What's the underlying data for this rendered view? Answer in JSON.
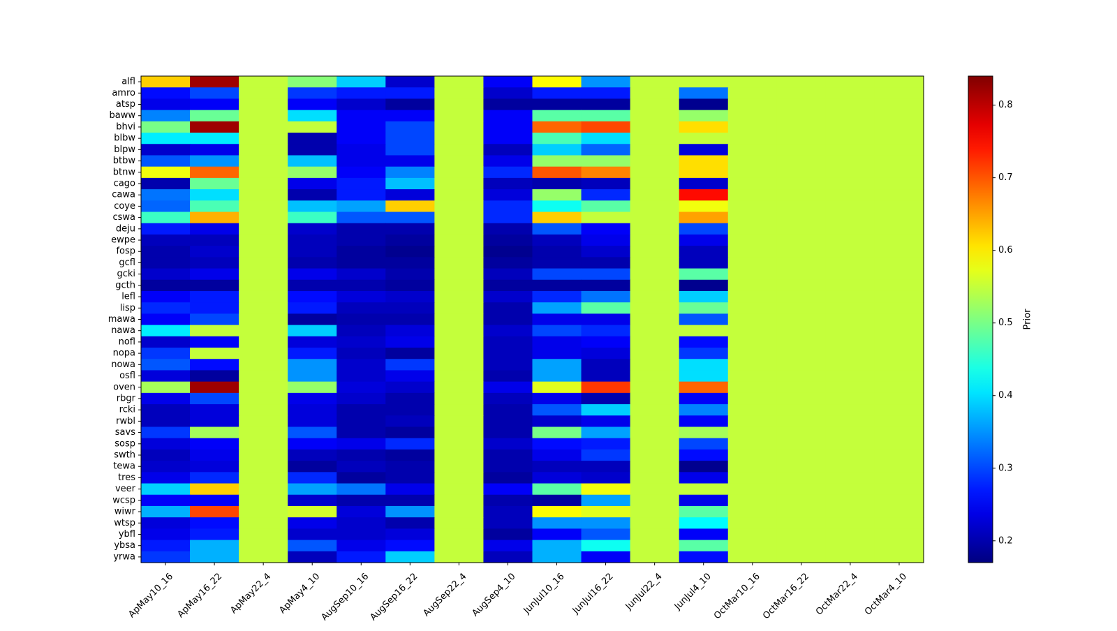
{
  "chart_data": {
    "type": "heatmap",
    "title": "",
    "xlabel": "",
    "ylabel": "",
    "x_categories": [
      "ApMay10_16",
      "ApMay16_22",
      "ApMay22_4",
      "ApMay4_10",
      "AugSep10_16",
      "AugSep16_22",
      "AugSep22_4",
      "AugSep4_10",
      "JunJul10_16",
      "JunJul16_22",
      "JunJul22_4",
      "JunJul4_10",
      "OctMar10_16",
      "OctMar16_22",
      "OctMar22_4",
      "OctMar4_10"
    ],
    "y_categories": [
      "alfl",
      "amro",
      "atsp",
      "baww",
      "bhvi",
      "blbw",
      "blpw",
      "btbw",
      "btnw",
      "cago",
      "cawa",
      "coye",
      "cswa",
      "deju",
      "ewpe",
      "fosp",
      "gcfl",
      "gcki",
      "gcth",
      "lefl",
      "lisp",
      "mawa",
      "nawa",
      "nofl",
      "nopa",
      "nowa",
      "osfl",
      "oven",
      "rbgr",
      "rcki",
      "rwbl",
      "savs",
      "sosp",
      "swth",
      "tewa",
      "tres",
      "veer",
      "wcsp",
      "wiwr",
      "wtsp",
      "ybfl",
      "ybsa",
      "yrwa"
    ],
    "colormap": "jet",
    "vmin": 0.17,
    "vmax": 0.84,
    "colorbar_label": "Prior",
    "colorbar_ticks": [
      0.2,
      0.3,
      0.4,
      0.5,
      0.6,
      0.7,
      0.8
    ],
    "colorbar_tick_labels": [
      "0.2",
      "0.3",
      "0.4",
      "0.5",
      "0.6",
      "0.7",
      "0.8"
    ],
    "values": [
      [
        0.62,
        0.82,
        0.55,
        0.51,
        0.39,
        0.22,
        0.55,
        0.25,
        0.59,
        0.35,
        0.55,
        0.55,
        0.55,
        0.55,
        0.55,
        0.55
      ],
      [
        0.26,
        0.3,
        0.55,
        0.29,
        0.27,
        0.27,
        0.55,
        0.22,
        0.27,
        0.27,
        0.55,
        0.33,
        0.55,
        0.55,
        0.55,
        0.55
      ],
      [
        0.24,
        0.25,
        0.55,
        0.25,
        0.22,
        0.19,
        0.55,
        0.19,
        0.19,
        0.19,
        0.55,
        0.18,
        0.55,
        0.55,
        0.55,
        0.55
      ],
      [
        0.34,
        0.49,
        0.55,
        0.4,
        0.25,
        0.25,
        0.55,
        0.25,
        0.48,
        0.48,
        0.55,
        0.52,
        0.55,
        0.55,
        0.55,
        0.55
      ],
      [
        0.5,
        0.82,
        0.55,
        0.55,
        0.25,
        0.3,
        0.55,
        0.25,
        0.69,
        0.71,
        0.55,
        0.61,
        0.55,
        0.55,
        0.55,
        0.55
      ],
      [
        0.41,
        0.41,
        0.55,
        0.2,
        0.25,
        0.3,
        0.55,
        0.25,
        0.47,
        0.4,
        0.55,
        0.55,
        0.55,
        0.55,
        0.55,
        0.55
      ],
      [
        0.22,
        0.24,
        0.55,
        0.2,
        0.24,
        0.3,
        0.55,
        0.21,
        0.39,
        0.32,
        0.55,
        0.23,
        0.55,
        0.55,
        0.55,
        0.55
      ],
      [
        0.31,
        0.35,
        0.55,
        0.38,
        0.24,
        0.24,
        0.55,
        0.24,
        0.52,
        0.52,
        0.55,
        0.61,
        0.55,
        0.55,
        0.55,
        0.55
      ],
      [
        0.58,
        0.69,
        0.55,
        0.52,
        0.25,
        0.34,
        0.55,
        0.28,
        0.7,
        0.67,
        0.55,
        0.61,
        0.55,
        0.55,
        0.55,
        0.55
      ],
      [
        0.2,
        0.49,
        0.55,
        0.24,
        0.27,
        0.38,
        0.55,
        0.21,
        0.2,
        0.21,
        0.55,
        0.22,
        0.55,
        0.55,
        0.55,
        0.55
      ],
      [
        0.33,
        0.4,
        0.55,
        0.2,
        0.27,
        0.23,
        0.55,
        0.23,
        0.52,
        0.28,
        0.55,
        0.75,
        0.55,
        0.55,
        0.55,
        0.55
      ],
      [
        0.32,
        0.47,
        0.55,
        0.38,
        0.36,
        0.62,
        0.55,
        0.28,
        0.43,
        0.48,
        0.55,
        0.58,
        0.55,
        0.55,
        0.55,
        0.55
      ],
      [
        0.46,
        0.64,
        0.55,
        0.46,
        0.31,
        0.31,
        0.55,
        0.28,
        0.62,
        0.55,
        0.55,
        0.65,
        0.55,
        0.55,
        0.55,
        0.55
      ],
      [
        0.27,
        0.24,
        0.55,
        0.22,
        0.2,
        0.2,
        0.55,
        0.2,
        0.31,
        0.25,
        0.55,
        0.3,
        0.55,
        0.55,
        0.55,
        0.55
      ],
      [
        0.21,
        0.21,
        0.55,
        0.21,
        0.2,
        0.19,
        0.55,
        0.19,
        0.21,
        0.24,
        0.55,
        0.24,
        0.55,
        0.55,
        0.55,
        0.55
      ],
      [
        0.2,
        0.22,
        0.55,
        0.21,
        0.19,
        0.18,
        0.55,
        0.18,
        0.2,
        0.22,
        0.55,
        0.21,
        0.55,
        0.55,
        0.55,
        0.55
      ],
      [
        0.2,
        0.21,
        0.55,
        0.2,
        0.19,
        0.19,
        0.55,
        0.19,
        0.2,
        0.2,
        0.55,
        0.21,
        0.55,
        0.55,
        0.55,
        0.55
      ],
      [
        0.22,
        0.24,
        0.55,
        0.24,
        0.22,
        0.2,
        0.55,
        0.21,
        0.3,
        0.3,
        0.55,
        0.48,
        0.55,
        0.55,
        0.55,
        0.55
      ],
      [
        0.19,
        0.19,
        0.55,
        0.2,
        0.2,
        0.19,
        0.55,
        0.19,
        0.19,
        0.19,
        0.55,
        0.18,
        0.55,
        0.55,
        0.55,
        0.55
      ],
      [
        0.25,
        0.27,
        0.55,
        0.26,
        0.23,
        0.22,
        0.55,
        0.22,
        0.28,
        0.33,
        0.55,
        0.39,
        0.55,
        0.55,
        0.55,
        0.55
      ],
      [
        0.28,
        0.27,
        0.55,
        0.27,
        0.21,
        0.21,
        0.55,
        0.2,
        0.36,
        0.48,
        0.55,
        0.49,
        0.55,
        0.55,
        0.55,
        0.55
      ],
      [
        0.25,
        0.3,
        0.55,
        0.19,
        0.2,
        0.2,
        0.55,
        0.2,
        0.24,
        0.24,
        0.55,
        0.31,
        0.55,
        0.55,
        0.55,
        0.55
      ],
      [
        0.41,
        0.55,
        0.55,
        0.39,
        0.21,
        0.23,
        0.55,
        0.22,
        0.3,
        0.28,
        0.55,
        0.55,
        0.55,
        0.55,
        0.55,
        0.55
      ],
      [
        0.22,
        0.25,
        0.55,
        0.23,
        0.22,
        0.24,
        0.55,
        0.21,
        0.24,
        0.25,
        0.55,
        0.26,
        0.55,
        0.55,
        0.55,
        0.55
      ],
      [
        0.29,
        0.55,
        0.55,
        0.27,
        0.21,
        0.19,
        0.55,
        0.21,
        0.24,
        0.23,
        0.55,
        0.29,
        0.55,
        0.55,
        0.55,
        0.55
      ],
      [
        0.31,
        0.26,
        0.55,
        0.35,
        0.22,
        0.29,
        0.55,
        0.21,
        0.36,
        0.21,
        0.55,
        0.4,
        0.55,
        0.55,
        0.55,
        0.55
      ],
      [
        0.23,
        0.19,
        0.55,
        0.35,
        0.22,
        0.24,
        0.55,
        0.2,
        0.36,
        0.21,
        0.55,
        0.4,
        0.55,
        0.55,
        0.55,
        0.55
      ],
      [
        0.53,
        0.82,
        0.55,
        0.52,
        0.23,
        0.22,
        0.55,
        0.24,
        0.57,
        0.72,
        0.55,
        0.69,
        0.55,
        0.55,
        0.55,
        0.55
      ],
      [
        0.24,
        0.3,
        0.55,
        0.24,
        0.22,
        0.2,
        0.55,
        0.21,
        0.24,
        0.2,
        0.55,
        0.25,
        0.55,
        0.55,
        0.55,
        0.55
      ],
      [
        0.21,
        0.23,
        0.55,
        0.23,
        0.2,
        0.2,
        0.55,
        0.2,
        0.31,
        0.39,
        0.55,
        0.34,
        0.55,
        0.55,
        0.55,
        0.55
      ],
      [
        0.21,
        0.23,
        0.55,
        0.23,
        0.2,
        0.21,
        0.55,
        0.2,
        0.22,
        0.24,
        0.55,
        0.25,
        0.55,
        0.55,
        0.55,
        0.55
      ],
      [
        0.29,
        0.53,
        0.55,
        0.31,
        0.2,
        0.19,
        0.55,
        0.2,
        0.5,
        0.36,
        0.55,
        0.53,
        0.55,
        0.55,
        0.55,
        0.55
      ],
      [
        0.23,
        0.25,
        0.55,
        0.25,
        0.24,
        0.28,
        0.55,
        0.22,
        0.26,
        0.27,
        0.55,
        0.3,
        0.55,
        0.55,
        0.55,
        0.55
      ],
      [
        0.21,
        0.24,
        0.55,
        0.21,
        0.2,
        0.19,
        0.55,
        0.2,
        0.24,
        0.29,
        0.55,
        0.26,
        0.55,
        0.55,
        0.55,
        0.55
      ],
      [
        0.22,
        0.23,
        0.55,
        0.19,
        0.21,
        0.2,
        0.55,
        0.2,
        0.21,
        0.21,
        0.55,
        0.18,
        0.55,
        0.55,
        0.55,
        0.55
      ],
      [
        0.24,
        0.28,
        0.55,
        0.28,
        0.19,
        0.2,
        0.55,
        0.19,
        0.23,
        0.22,
        0.55,
        0.24,
        0.55,
        0.55,
        0.55,
        0.55
      ],
      [
        0.39,
        0.62,
        0.55,
        0.36,
        0.33,
        0.24,
        0.55,
        0.25,
        0.48,
        0.58,
        0.55,
        0.55,
        0.55,
        0.55,
        0.55,
        0.55
      ],
      [
        0.25,
        0.25,
        0.55,
        0.22,
        0.2,
        0.2,
        0.55,
        0.2,
        0.19,
        0.36,
        0.55,
        0.24,
        0.55,
        0.55,
        0.55,
        0.55
      ],
      [
        0.37,
        0.71,
        0.55,
        0.56,
        0.23,
        0.35,
        0.55,
        0.21,
        0.59,
        0.57,
        0.55,
        0.48,
        0.55,
        0.55,
        0.55,
        0.55
      ],
      [
        0.23,
        0.26,
        0.55,
        0.24,
        0.22,
        0.2,
        0.55,
        0.21,
        0.35,
        0.35,
        0.55,
        0.42,
        0.55,
        0.55,
        0.55,
        0.55
      ],
      [
        0.24,
        0.27,
        0.55,
        0.22,
        0.22,
        0.23,
        0.55,
        0.19,
        0.25,
        0.31,
        0.55,
        0.25,
        0.55,
        0.55,
        0.55,
        0.55
      ],
      [
        0.27,
        0.37,
        0.55,
        0.31,
        0.24,
        0.26,
        0.55,
        0.24,
        0.37,
        0.43,
        0.55,
        0.48,
        0.55,
        0.55,
        0.55,
        0.55
      ],
      [
        0.29,
        0.37,
        0.55,
        0.21,
        0.27,
        0.39,
        0.55,
        0.21,
        0.37,
        0.25,
        0.55,
        0.26,
        0.55,
        0.55,
        0.55,
        0.55
      ]
    ]
  }
}
